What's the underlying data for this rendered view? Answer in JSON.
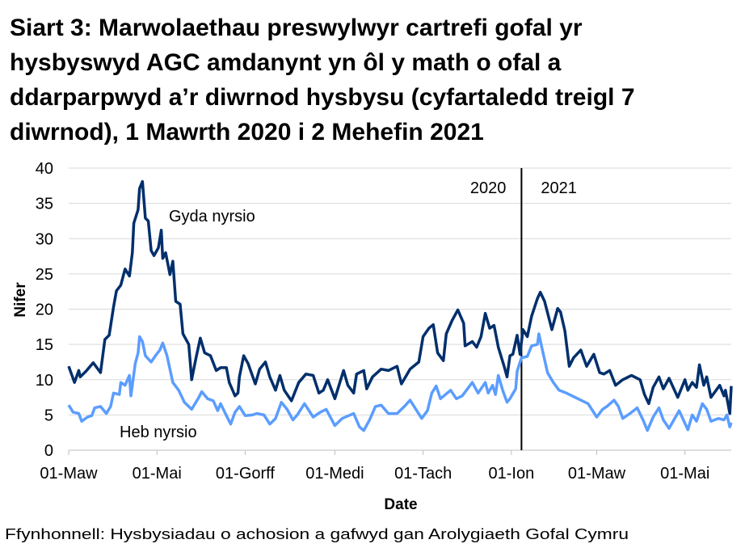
{
  "chart_data": {
    "type": "line",
    "title_lines": [
      "Siart 3: Marwolaethau preswylwyr cartrefi gofal yr",
      "hysbyswyd AGC amdanynt yn ôl y math o ofal a",
      "ddarparpwyd a’r diwrnod hysbysu (cyfartaledd treigl 7",
      "diwrnod), 1 Mawrth 2020 i 2 Mehefin 2021"
    ],
    "xlabel": "Date",
    "ylabel": "Nifer",
    "source": "Ffynhonnell: Hysbysiadau o achosion a gafwyd gan Arolygiaeth Gofal Cymru",
    "xlim": [
      "2020-03-01",
      "2021-06-02"
    ],
    "ylim": [
      0,
      40
    ],
    "yticks": [
      0,
      5,
      10,
      15,
      20,
      25,
      30,
      35,
      40
    ],
    "xticks": [
      {
        "date": "2020-03-01",
        "label": "01-Maw"
      },
      {
        "date": "2020-05-01",
        "label": "01-Mai"
      },
      {
        "date": "2020-07-01",
        "label": "01-Gorff"
      },
      {
        "date": "2020-09-01",
        "label": "01-Medi"
      },
      {
        "date": "2020-11-01",
        "label": "01-Tach"
      },
      {
        "date": "2021-01-01",
        "label": "01-Ion"
      },
      {
        "date": "2021-03-01",
        "label": "01-Maw"
      },
      {
        "date": "2021-05-01",
        "label": "01-Mai"
      }
    ],
    "grid": "horizontal",
    "legend": "none",
    "divider": {
      "date": "2021-01-08",
      "left_label": "2020",
      "right_label": "2021"
    },
    "series": [
      {
        "name": "Gyda nyrsio",
        "color": "#002f6c",
        "points": [
          [
            "2020-03-01",
            11.9
          ],
          [
            "2020-03-05",
            9.6
          ],
          [
            "2020-03-08",
            11.3
          ],
          [
            "2020-03-09",
            10.4
          ],
          [
            "2020-03-13",
            11.2
          ],
          [
            "2020-03-18",
            12.4
          ],
          [
            "2020-03-23",
            11.0
          ],
          [
            "2020-03-26",
            15.7
          ],
          [
            "2020-03-29",
            16.3
          ],
          [
            "2020-04-01",
            20.3
          ],
          [
            "2020-04-03",
            22.6
          ],
          [
            "2020-04-06",
            23.4
          ],
          [
            "2020-04-09",
            25.7
          ],
          [
            "2020-04-12",
            24.7
          ],
          [
            "2020-04-14",
            28.0
          ],
          [
            "2020-04-15",
            32.2
          ],
          [
            "2020-04-18",
            34.1
          ],
          [
            "2020-04-19",
            37.1
          ],
          [
            "2020-04-21",
            38.1
          ],
          [
            "2020-04-23",
            32.9
          ],
          [
            "2020-04-25",
            32.5
          ],
          [
            "2020-04-27",
            28.3
          ],
          [
            "2020-04-29",
            27.6
          ],
          [
            "2020-05-02",
            28.7
          ],
          [
            "2020-05-04",
            31.2
          ],
          [
            "2020-05-05",
            27.2
          ],
          [
            "2020-05-07",
            28.0
          ],
          [
            "2020-05-10",
            24.9
          ],
          [
            "2020-05-12",
            26.8
          ],
          [
            "2020-05-14",
            21.1
          ],
          [
            "2020-05-17",
            20.7
          ],
          [
            "2020-05-19",
            16.5
          ],
          [
            "2020-05-23",
            15.0
          ],
          [
            "2020-05-25",
            10.0
          ],
          [
            "2020-05-28",
            13.1
          ],
          [
            "2020-05-31",
            15.9
          ],
          [
            "2020-06-03",
            13.8
          ],
          [
            "2020-06-07",
            13.4
          ],
          [
            "2020-06-11",
            11.3
          ],
          [
            "2020-06-14",
            11.7
          ],
          [
            "2020-06-18",
            11.7
          ],
          [
            "2020-06-20",
            9.6
          ],
          [
            "2020-06-24",
            7.7
          ],
          [
            "2020-06-26",
            8.1
          ],
          [
            "2020-06-27",
            10.4
          ],
          [
            "2020-06-30",
            13.4
          ],
          [
            "2020-07-03",
            12.3
          ],
          [
            "2020-07-08",
            9.4
          ],
          [
            "2020-07-11",
            11.5
          ],
          [
            "2020-07-15",
            12.5
          ],
          [
            "2020-07-18",
            10.4
          ],
          [
            "2020-07-22",
            8.5
          ],
          [
            "2020-07-25",
            10.6
          ],
          [
            "2020-07-28",
            8.5
          ],
          [
            "2020-08-02",
            7.0
          ],
          [
            "2020-08-07",
            9.6
          ],
          [
            "2020-08-12",
            10.8
          ],
          [
            "2020-08-17",
            10.6
          ],
          [
            "2020-08-21",
            8.1
          ],
          [
            "2020-08-24",
            8.5
          ],
          [
            "2020-08-27",
            10.0
          ],
          [
            "2020-09-01",
            7.3
          ],
          [
            "2020-09-07",
            11.3
          ],
          [
            "2020-09-10",
            9.2
          ],
          [
            "2020-09-14",
            8.1
          ],
          [
            "2020-09-16",
            10.8
          ],
          [
            "2020-09-21",
            11.3
          ],
          [
            "2020-09-23",
            8.7
          ],
          [
            "2020-09-27",
            10.4
          ],
          [
            "2020-10-03",
            11.5
          ],
          [
            "2020-10-08",
            11.3
          ],
          [
            "2020-10-14",
            11.9
          ],
          [
            "2020-10-17",
            9.4
          ],
          [
            "2020-10-23",
            11.5
          ],
          [
            "2020-10-29",
            12.5
          ],
          [
            "2020-11-01",
            16.1
          ],
          [
            "2020-11-05",
            17.3
          ],
          [
            "2020-11-08",
            17.8
          ],
          [
            "2020-11-11",
            13.8
          ],
          [
            "2020-11-15",
            12.7
          ],
          [
            "2020-11-17",
            16.5
          ],
          [
            "2020-11-21",
            18.4
          ],
          [
            "2020-11-25",
            19.9
          ],
          [
            "2020-11-29",
            18.0
          ],
          [
            "2020-11-30",
            14.8
          ],
          [
            "2020-12-05",
            15.4
          ],
          [
            "2020-12-08",
            14.6
          ],
          [
            "2020-12-11",
            16.1
          ],
          [
            "2020-12-14",
            19.4
          ],
          [
            "2020-12-17",
            17.3
          ],
          [
            "2020-12-20",
            17.7
          ],
          [
            "2020-12-23",
            14.6
          ],
          [
            "2020-12-27",
            11.9
          ],
          [
            "2020-12-29",
            10.4
          ],
          [
            "2020-12-31",
            13.4
          ],
          [
            "2021-01-02",
            13.6
          ],
          [
            "2021-01-05",
            16.3
          ],
          [
            "2021-01-07",
            13.6
          ],
          [
            "2021-01-09",
            17.1
          ],
          [
            "2021-01-12",
            16.1
          ],
          [
            "2021-01-15",
            19.0
          ],
          [
            "2021-01-19",
            21.5
          ],
          [
            "2021-01-21",
            22.4
          ],
          [
            "2021-01-24",
            21.1
          ],
          [
            "2021-01-29",
            17.1
          ],
          [
            "2021-02-02",
            20.1
          ],
          [
            "2021-02-04",
            19.6
          ],
          [
            "2021-02-07",
            16.9
          ],
          [
            "2021-02-10",
            11.9
          ],
          [
            "2021-02-13",
            13.1
          ],
          [
            "2021-02-18",
            14.2
          ],
          [
            "2021-02-22",
            11.9
          ],
          [
            "2021-02-27",
            13.6
          ],
          [
            "2021-03-03",
            11.0
          ],
          [
            "2021-03-06",
            10.8
          ],
          [
            "2021-03-10",
            11.3
          ],
          [
            "2021-03-14",
            9.2
          ],
          [
            "2021-03-19",
            10.0
          ],
          [
            "2021-03-25",
            10.6
          ],
          [
            "2021-03-31",
            10.0
          ],
          [
            "2021-04-03",
            7.9
          ],
          [
            "2021-04-06",
            6.6
          ],
          [
            "2021-04-09",
            8.9
          ],
          [
            "2021-04-13",
            10.4
          ],
          [
            "2021-04-16",
            8.7
          ],
          [
            "2021-04-20",
            10.2
          ],
          [
            "2021-04-26",
            7.5
          ],
          [
            "2021-05-01",
            10.0
          ],
          [
            "2021-05-03",
            8.5
          ],
          [
            "2021-05-06",
            9.6
          ],
          [
            "2021-05-09",
            8.9
          ],
          [
            "2021-05-11",
            12.1
          ],
          [
            "2021-05-14",
            9.2
          ],
          [
            "2021-05-16",
            10.4
          ],
          [
            "2021-05-19",
            7.5
          ],
          [
            "2021-05-25",
            9.2
          ],
          [
            "2021-05-28",
            7.7
          ],
          [
            "2021-05-29",
            8.5
          ],
          [
            "2021-06-01",
            5.2
          ],
          [
            "2021-06-02",
            9.1
          ]
        ]
      },
      {
        "name": "Heb nyrsio",
        "color": "#5b9dff",
        "points": [
          [
            "2020-03-01",
            6.4
          ],
          [
            "2020-03-04",
            5.4
          ],
          [
            "2020-03-08",
            5.2
          ],
          [
            "2020-03-10",
            4.1
          ],
          [
            "2020-03-14",
            4.7
          ],
          [
            "2020-03-17",
            4.9
          ],
          [
            "2020-03-19",
            6.0
          ],
          [
            "2020-03-23",
            6.2
          ],
          [
            "2020-03-27",
            5.2
          ],
          [
            "2020-03-30",
            6.2
          ],
          [
            "2020-04-01",
            8.1
          ],
          [
            "2020-04-05",
            7.9
          ],
          [
            "2020-04-06",
            9.6
          ],
          [
            "2020-04-09",
            9.2
          ],
          [
            "2020-04-12",
            10.6
          ],
          [
            "2020-04-13",
            7.7
          ],
          [
            "2020-04-16",
            12.3
          ],
          [
            "2020-04-18",
            13.8
          ],
          [
            "2020-04-19",
            16.1
          ],
          [
            "2020-04-21",
            15.4
          ],
          [
            "2020-04-23",
            13.4
          ],
          [
            "2020-04-27",
            12.5
          ],
          [
            "2020-04-30",
            13.4
          ],
          [
            "2020-05-03",
            14.2
          ],
          [
            "2020-05-05",
            15.2
          ],
          [
            "2020-05-08",
            13.4
          ],
          [
            "2020-05-12",
            9.6
          ],
          [
            "2020-05-16",
            8.5
          ],
          [
            "2020-05-20",
            6.8
          ],
          [
            "2020-05-25",
            5.8
          ],
          [
            "2020-05-30",
            7.5
          ],
          [
            "2020-06-01",
            8.3
          ],
          [
            "2020-06-05",
            7.3
          ],
          [
            "2020-06-09",
            7.0
          ],
          [
            "2020-06-12",
            5.6
          ],
          [
            "2020-06-14",
            6.6
          ],
          [
            "2020-06-18",
            4.9
          ],
          [
            "2020-06-21",
            3.7
          ],
          [
            "2020-06-24",
            5.4
          ],
          [
            "2020-06-27",
            6.2
          ],
          [
            "2020-07-01",
            4.9
          ],
          [
            "2020-07-06",
            5.0
          ],
          [
            "2020-07-09",
            5.2
          ],
          [
            "2020-07-14",
            5.0
          ],
          [
            "2020-07-18",
            3.7
          ],
          [
            "2020-07-22",
            4.5
          ],
          [
            "2020-07-26",
            6.8
          ],
          [
            "2020-07-30",
            5.8
          ],
          [
            "2020-08-03",
            4.3
          ],
          [
            "2020-08-06",
            5.0
          ],
          [
            "2020-08-11",
            6.6
          ],
          [
            "2020-08-17",
            4.7
          ],
          [
            "2020-08-22",
            5.4
          ],
          [
            "2020-08-26",
            5.8
          ],
          [
            "2020-09-01",
            3.5
          ],
          [
            "2020-09-06",
            4.5
          ],
          [
            "2020-09-14",
            5.2
          ],
          [
            "2020-09-18",
            3.3
          ],
          [
            "2020-09-21",
            2.8
          ],
          [
            "2020-09-25",
            4.3
          ],
          [
            "2020-09-29",
            6.2
          ],
          [
            "2020-10-03",
            6.4
          ],
          [
            "2020-10-08",
            5.2
          ],
          [
            "2020-10-14",
            5.2
          ],
          [
            "2020-10-19",
            6.2
          ],
          [
            "2020-10-23",
            7.1
          ],
          [
            "2020-10-27",
            5.8
          ],
          [
            "2020-10-31",
            4.5
          ],
          [
            "2020-11-04",
            5.6
          ],
          [
            "2020-11-07",
            8.1
          ],
          [
            "2020-11-10",
            9.1
          ],
          [
            "2020-11-13",
            7.3
          ],
          [
            "2020-11-20",
            8.5
          ],
          [
            "2020-11-24",
            7.3
          ],
          [
            "2020-11-28",
            7.7
          ],
          [
            "2020-12-05",
            9.6
          ],
          [
            "2020-12-09",
            8.1
          ],
          [
            "2020-12-14",
            9.6
          ],
          [
            "2020-12-16",
            8.1
          ],
          [
            "2020-12-19",
            9.2
          ],
          [
            "2020-12-21",
            7.9
          ],
          [
            "2020-12-23",
            10.6
          ],
          [
            "2020-12-26",
            8.5
          ],
          [
            "2020-12-29",
            6.8
          ],
          [
            "2020-12-31",
            7.3
          ],
          [
            "2021-01-04",
            8.7
          ],
          [
            "2021-01-05",
            11.2
          ],
          [
            "2021-01-08",
            13.1
          ],
          [
            "2021-01-12",
            13.3
          ],
          [
            "2021-01-15",
            14.8
          ],
          [
            "2021-01-19",
            15.0
          ],
          [
            "2021-01-20",
            16.5
          ],
          [
            "2021-01-22",
            14.6
          ],
          [
            "2021-01-26",
            11.0
          ],
          [
            "2021-01-30",
            9.6
          ],
          [
            "2021-02-03",
            8.5
          ],
          [
            "2021-02-08",
            8.1
          ],
          [
            "2021-02-12",
            7.7
          ],
          [
            "2021-02-18",
            7.1
          ],
          [
            "2021-02-23",
            6.6
          ],
          [
            "2021-03-01",
            4.7
          ],
          [
            "2021-03-05",
            5.8
          ],
          [
            "2021-03-08",
            6.2
          ],
          [
            "2021-03-13",
            7.1
          ],
          [
            "2021-03-16",
            6.2
          ],
          [
            "2021-03-19",
            4.5
          ],
          [
            "2021-03-24",
            5.2
          ],
          [
            "2021-03-29",
            6.0
          ],
          [
            "2021-04-02",
            4.3
          ],
          [
            "2021-04-05",
            2.8
          ],
          [
            "2021-04-09",
            4.7
          ],
          [
            "2021-04-13",
            6.0
          ],
          [
            "2021-04-16",
            4.3
          ],
          [
            "2021-04-20",
            3.1
          ],
          [
            "2021-04-27",
            5.6
          ],
          [
            "2021-05-03",
            2.9
          ],
          [
            "2021-05-06",
            5.0
          ],
          [
            "2021-05-09",
            4.1
          ],
          [
            "2021-05-13",
            6.6
          ],
          [
            "2021-05-16",
            5.8
          ],
          [
            "2021-05-19",
            4.1
          ],
          [
            "2021-05-24",
            4.5
          ],
          [
            "2021-05-28",
            4.3
          ],
          [
            "2021-05-30",
            5.0
          ],
          [
            "2021-06-01",
            3.3
          ],
          [
            "2021-06-02",
            3.9
          ]
        ]
      }
    ],
    "gridline_color": "#d9d9d9"
  }
}
